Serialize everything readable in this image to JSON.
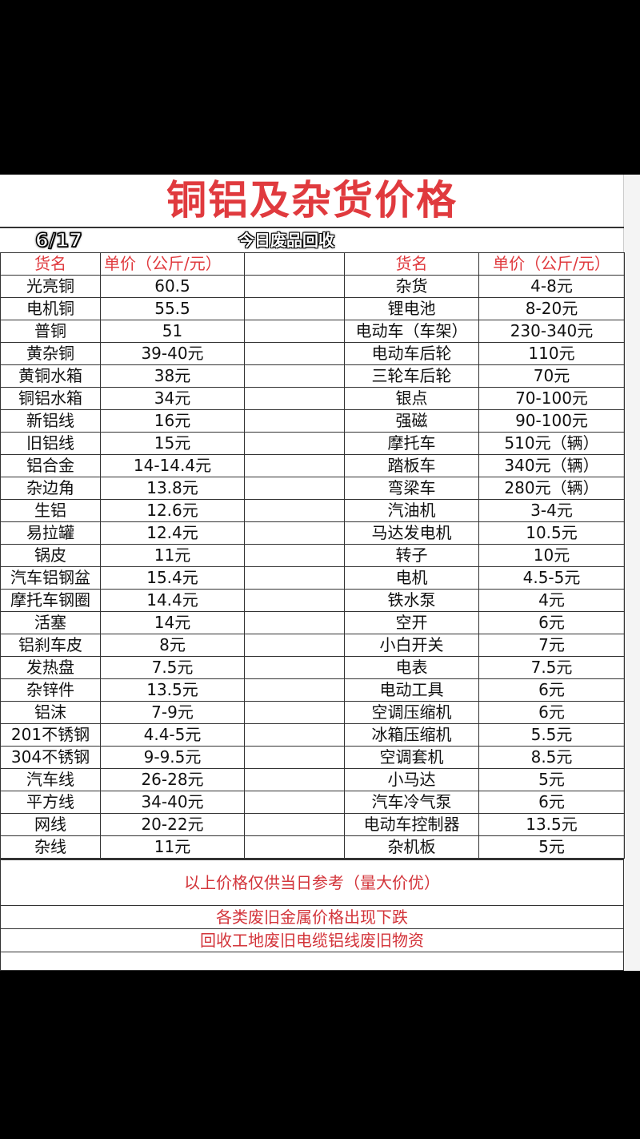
{
  "title": "铜铝及杂货价格",
  "date": "6/17",
  "slogan": "今日废品回收",
  "headers": {
    "left_name": "货名",
    "left_price": "单价（公斤/元）",
    "right_name": "货名",
    "right_price": "单价（公斤/元）"
  },
  "rows": [
    {
      "ln": "光亮铜",
      "lp": "60.5",
      "rn": "杂货",
      "rp": "4-8元"
    },
    {
      "ln": "电机铜",
      "lp": "55.5",
      "rn": "锂电池",
      "rp": "8-20元"
    },
    {
      "ln": "普铜",
      "lp": "51",
      "rn": "电动车（车架）",
      "rp": "230-340元"
    },
    {
      "ln": "黄杂铜",
      "lp": "39-40元",
      "rn": "电动车后轮",
      "rp": "110元"
    },
    {
      "ln": "黄铜水箱",
      "lp": "38元",
      "rn": "三轮车后轮",
      "rp": "70元"
    },
    {
      "ln": "铜铝水箱",
      "lp": "34元",
      "rn": "银点",
      "rp": "70-100元"
    },
    {
      "ln": "新铝线",
      "lp": "16元",
      "rn": "强磁",
      "rp": "90-100元"
    },
    {
      "ln": "旧铝线",
      "lp": "15元",
      "rn": "摩托车",
      "rp": "510元（辆）"
    },
    {
      "ln": "铝合金",
      "lp": "14-14.4元",
      "rn": "踏板车",
      "rp": "340元（辆）"
    },
    {
      "ln": "杂边角",
      "lp": "13.8元",
      "rn": "弯梁车",
      "rp": "280元（辆）"
    },
    {
      "ln": "生铝",
      "lp": "12.6元",
      "rn": "汽油机",
      "rp": "3-4元"
    },
    {
      "ln": "易拉罐",
      "lp": "12.4元",
      "rn": "马达发电机",
      "rp": "10.5元"
    },
    {
      "ln": "锅皮",
      "lp": "11元",
      "rn": "转子",
      "rp": "10元"
    },
    {
      "ln": "汽车铝钢盆",
      "lp": "15.4元",
      "rn": "电机",
      "rp": "4.5-5元"
    },
    {
      "ln": "摩托车钢圈",
      "lp": "14.4元",
      "rn": "铁水泵",
      "rp": "4元"
    },
    {
      "ln": "活塞",
      "lp": "14元",
      "rn": "空开",
      "rp": "6元"
    },
    {
      "ln": "铝刹车皮",
      "lp": "8元",
      "rn": "小白开关",
      "rp": "7元"
    },
    {
      "ln": "发热盘",
      "lp": "7.5元",
      "rn": "电表",
      "rp": "7.5元"
    },
    {
      "ln": "杂锌件",
      "lp": "13.5元",
      "rn": "电动工具",
      "rp": "6元"
    },
    {
      "ln": "铝沫",
      "lp": "7-9元",
      "rn": "空调压缩机",
      "rp": "6元"
    },
    {
      "ln": "201不锈钢",
      "lp": "4.4-5元",
      "rn": "冰箱压缩机",
      "rp": "5.5元"
    },
    {
      "ln": "304不锈钢",
      "lp": "9-9.5元",
      "rn": "空调套机",
      "rp": "8.5元"
    },
    {
      "ln": "汽车线",
      "lp": "26-28元",
      "rn": "小马达",
      "rp": "5元"
    },
    {
      "ln": "平方线",
      "lp": "34-40元",
      "rn": "汽车冷气泵",
      "rp": "6元"
    },
    {
      "ln": "网线",
      "lp": "20-22元",
      "rn": "电动车控制器",
      "rp": "13.5元"
    },
    {
      "ln": "杂线",
      "lp": "11元",
      "rn": "杂机板",
      "rp": "5元"
    }
  ],
  "footer": {
    "note": "以上价格仅供当日参考（量大价优）",
    "line2": "各类废旧金属价格出现下跌",
    "line3": "回收工地废旧电缆铝线废旧物资"
  },
  "colors": {
    "accent": "#e03a3e",
    "background": "#000000"
  }
}
